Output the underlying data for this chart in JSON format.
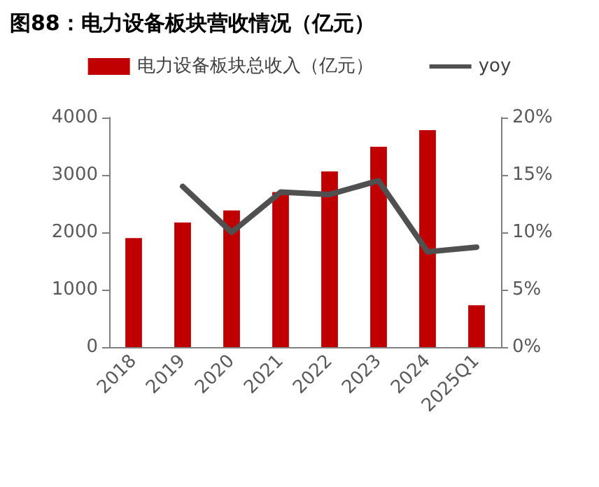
{
  "chart_data": {
    "type": "bar",
    "title": "图88：电力设备板块营收情况（亿元）",
    "categories": [
      "2018",
      "2019",
      "2020",
      "2021",
      "2022",
      "2023",
      "2024",
      "2025Q1"
    ],
    "series": [
      {
        "name": "电力设备板块总收入（亿元）",
        "color": "#c00000",
        "values": [
          1900,
          2170,
          2380,
          2700,
          3060,
          3490,
          3780,
          730
        ]
      },
      {
        "name": "yoy",
        "type": "line",
        "axis": "y2",
        "color": "#505050",
        "values": [
          null,
          14.0,
          10.0,
          13.5,
          13.3,
          14.5,
          8.3,
          8.7
        ]
      }
    ],
    "ylim": [
      0,
      4000
    ],
    "yticks": [
      0,
      1000,
      2000,
      3000,
      4000
    ],
    "y2lim": [
      0,
      20
    ],
    "y2ticks": [
      {
        "value": 0,
        "label": "0%"
      },
      {
        "value": 5,
        "label": "5%"
      },
      {
        "value": 10,
        "label": "10%"
      },
      {
        "value": 15,
        "label": "15%"
      },
      {
        "value": 20,
        "label": "20%"
      }
    ],
    "grid": false,
    "legend": "top",
    "marker": "none"
  }
}
